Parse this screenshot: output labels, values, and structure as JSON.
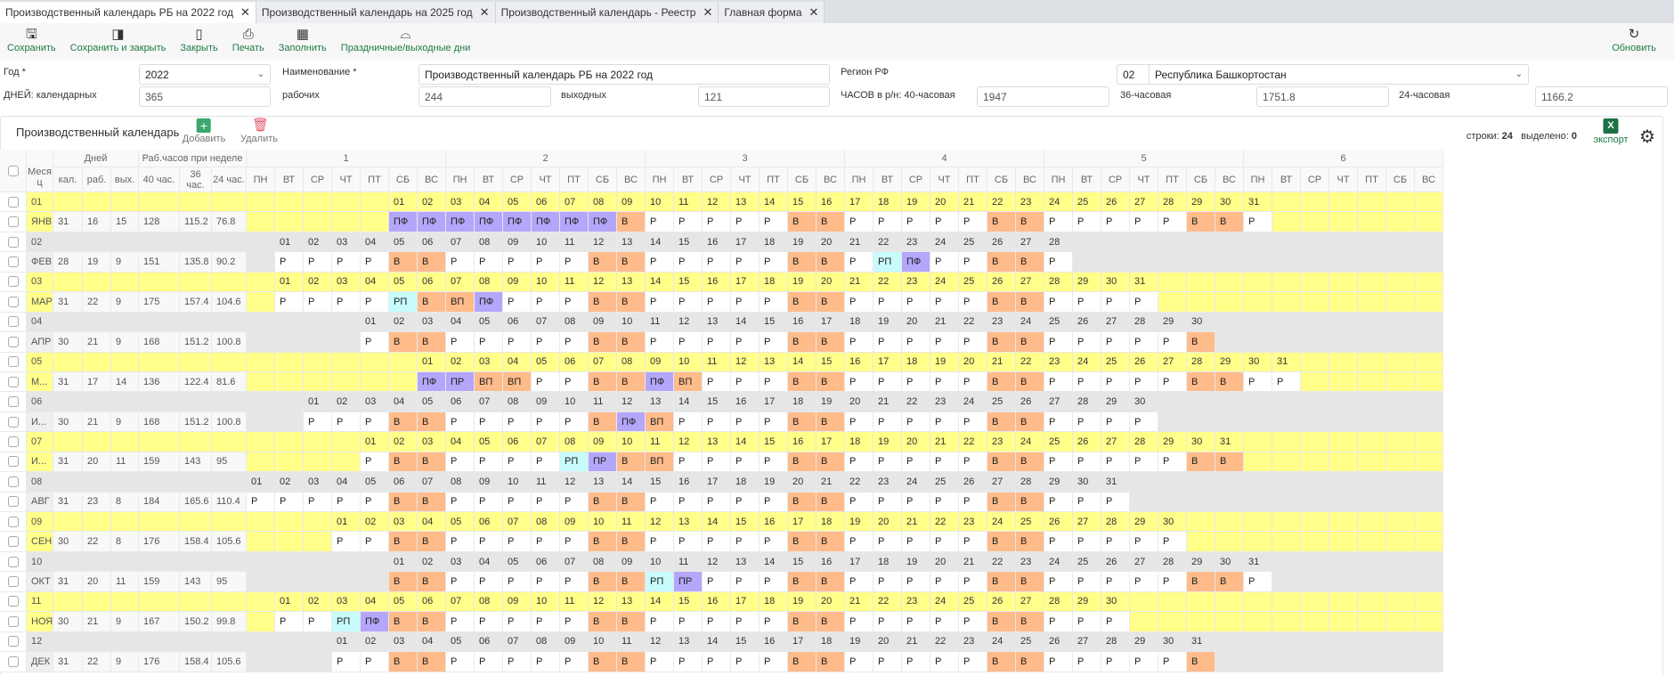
{
  "tabs": [
    {
      "label": "Производственный календарь РБ на 2022 год",
      "active": true
    },
    {
      "label": "Производственный календарь на 2025 год"
    },
    {
      "label": "Производственный календарь - Реестр"
    },
    {
      "label": "Главная форма"
    }
  ],
  "toolbar": {
    "save": "Сохранить",
    "save_close": "Сохранить и закрыть",
    "close": "Закрыть",
    "print": "Печать",
    "fill": "Заполнить",
    "holidays": "Праздничные/выходные дни",
    "refresh": "Обновить"
  },
  "form": {
    "year_label": "Год *",
    "year_value": "2022",
    "name_label": "Наименование *",
    "name_value": "Производственный календарь РБ на 2022 год",
    "region_label": "Регион РФ",
    "region_code": "02",
    "region_value": "Республика Башкортостан",
    "days_cal_label": "ДНЕЙ: календарных",
    "days_cal": "365",
    "days_work_label": "рабочих",
    "days_work": "244",
    "days_off_label": "выходных",
    "days_off": "121",
    "hours40_label": "ЧАСОВ в р/н: 40-часовая",
    "hours40": "1947",
    "hours36_label": "36-часовая",
    "hours36": "1751.8",
    "hours24_label": "24-часовая",
    "hours24": "1166.2"
  },
  "panel": {
    "title": "Производственный календарь",
    "add": "Добавить",
    "delete": "Удалить",
    "rows_label": "строки:",
    "rows": "24",
    "selected_label": "выделено:",
    "selected": "0",
    "export": "экспорт",
    "export_icon_text": "X"
  },
  "grid": {
    "month_header": "Месяц",
    "days_header": "Дней",
    "hours_header": "Раб.часов при неделе",
    "sub_headers": [
      "кал.",
      "раб.",
      "вых.",
      "40 час.",
      "36 час.",
      "24 час."
    ],
    "weeks": [
      "1",
      "2",
      "3",
      "4",
      "5",
      "6"
    ],
    "weekdays": [
      "ПН",
      "ВТ",
      "СР",
      "ЧТ",
      "ПТ",
      "СБ",
      "ВС"
    ]
  },
  "code_colors": {
    "Р": "#ffffff",
    "В": "#ffbb8a",
    "ВП": "#ffbb8a",
    "ПФ": "#b4a6fa",
    "ПР": "#b4a6fa",
    "РП": "#c8fbfb"
  },
  "row_colors": {
    "odd": "#ffff8a",
    "even": "#e6e6e6"
  },
  "months": [
    {
      "num": "01",
      "name": "ЯНВ",
      "cal": "31",
      "work": "16",
      "off": "15",
      "h40": "128",
      "h36": "115.2",
      "h24": "76.8",
      "first_weekday": 5,
      "codes": "ПФ ПФ ПФ ПФ ПФ ПФ ПФ ПФ В Р Р Р Р Р В В Р Р Р Р Р В В Р Р Р Р Р В В Р"
    },
    {
      "num": "02",
      "name": "ФЕВ",
      "cal": "28",
      "work": "19",
      "off": "9",
      "h40": "151",
      "h36": "135.8",
      "h24": "90.2",
      "first_weekday": 1,
      "codes": "Р Р Р Р В В Р Р Р Р Р В В Р Р Р Р Р В В Р РП ПФ Р Р В В Р"
    },
    {
      "num": "03",
      "name": "МАР",
      "cal": "31",
      "work": "22",
      "off": "9",
      "h40": "175",
      "h36": "157.4",
      "h24": "104.6",
      "first_weekday": 1,
      "codes": "Р Р Р Р РП В ВП ПФ Р Р Р В В Р Р Р Р Р В В Р Р Р Р Р В В Р Р Р Р"
    },
    {
      "num": "04",
      "name": "АПР",
      "cal": "30",
      "work": "21",
      "off": "9",
      "h40": "168",
      "h36": "151.2",
      "h24": "100.8",
      "first_weekday": 4,
      "codes": "Р В В Р Р Р Р Р В В Р Р Р Р Р В В Р Р Р Р Р В В Р Р Р Р Р В"
    },
    {
      "num": "05",
      "name": "М...",
      "cal": "31",
      "work": "17",
      "off": "14",
      "h40": "136",
      "h36": "122.4",
      "h24": "81.6",
      "first_weekday": 6,
      "codes": "ПФ ПР ВП ВП Р Р В В ПФ ВП Р Р Р В В Р Р Р Р Р В В Р Р Р Р Р В В Р Р"
    },
    {
      "num": "06",
      "name": "И...",
      "cal": "30",
      "work": "21",
      "off": "9",
      "h40": "168",
      "h36": "151.2",
      "h24": "100.8",
      "first_weekday": 2,
      "codes": "Р Р Р В В Р Р Р Р Р В ПФ ВП Р Р Р Р В В Р Р Р Р Р В В Р Р Р Р"
    },
    {
      "num": "07",
      "name": "И...",
      "cal": "31",
      "work": "20",
      "off": "11",
      "h40": "159",
      "h36": "143",
      "h24": "95",
      "first_weekday": 4,
      "codes": "Р В В Р Р Р Р РП ПР В ВП Р Р Р Р В В Р Р Р Р Р В В Р Р Р Р Р В В"
    },
    {
      "num": "08",
      "name": "АВГ",
      "cal": "31",
      "work": "23",
      "off": "8",
      "h40": "184",
      "h36": "165.6",
      "h24": "110.4",
      "first_weekday": 0,
      "codes": "Р Р Р Р Р В В Р Р Р Р Р В В Р Р Р Р Р В В Р Р Р Р Р В В Р Р Р"
    },
    {
      "num": "09",
      "name": "СЕН",
      "cal": "30",
      "work": "22",
      "off": "8",
      "h40": "176",
      "h36": "158.4",
      "h24": "105.6",
      "first_weekday": 3,
      "codes": "Р Р В В Р Р Р Р Р В В Р Р Р Р Р В В Р Р Р Р Р В В Р Р Р Р Р"
    },
    {
      "num": "10",
      "name": "ОКТ",
      "cal": "31",
      "work": "20",
      "off": "11",
      "h40": "159",
      "h36": "143",
      "h24": "95",
      "first_weekday": 5,
      "codes": "В В Р Р Р Р Р В В РП ПР Р Р Р В В Р Р Р Р Р В В Р Р Р Р Р В В Р"
    },
    {
      "num": "11",
      "name": "НОЯ",
      "cal": "30",
      "work": "21",
      "off": "9",
      "h40": "167",
      "h36": "150.2",
      "h24": "99.8",
      "first_weekday": 1,
      "codes": "Р Р РП ПФ В В Р Р Р Р Р В В Р Р Р Р Р В В Р Р Р Р Р В В Р Р Р"
    },
    {
      "num": "12",
      "name": "ДЕК",
      "cal": "31",
      "work": "22",
      "off": "9",
      "h40": "176",
      "h36": "158.4",
      "h24": "105.6",
      "first_weekday": 3,
      "codes": "Р Р В В Р Р Р Р Р В В Р Р Р Р Р В В Р Р Р Р Р В В Р Р Р Р Р В"
    }
  ]
}
